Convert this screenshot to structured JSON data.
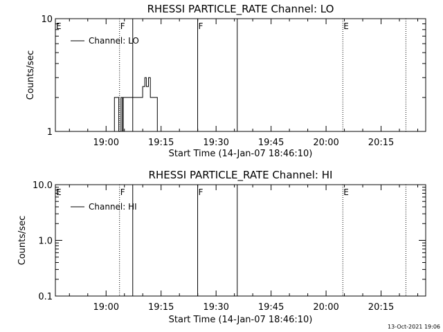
{
  "footer": {
    "timestamp": "13-Oct-2021 19:06"
  },
  "chart_data": [
    {
      "type": "line",
      "title": "RHESSI PARTICLE_RATE Channel: LO",
      "xlabel": "Start Time (14-Jan-07 18:46:10)",
      "ylabel": "Counts/sec",
      "x_unit": "minutes after 18:46:10",
      "xlim": [
        0,
        101
      ],
      "ylim": [
        1,
        10
      ],
      "yscale": "log",
      "x_ticks": [
        {
          "value": 13.83,
          "label": "19:00"
        },
        {
          "value": 28.83,
          "label": "19:15"
        },
        {
          "value": 43.83,
          "label": "19:30"
        },
        {
          "value": 58.83,
          "label": "19:45"
        },
        {
          "value": 73.83,
          "label": "20:00"
        },
        {
          "value": 88.83,
          "label": "20:15"
        }
      ],
      "y_ticks": [
        {
          "value": 10,
          "label": "10"
        },
        {
          "value": 1,
          "label": "1"
        }
      ],
      "legend": {
        "label": "Channel: LO",
        "position": "top-left"
      },
      "markers": [
        {
          "x": 0,
          "label": "E",
          "style": "none"
        },
        {
          "x": 17.5,
          "label": "F",
          "style": "dotted"
        },
        {
          "x": 21.1,
          "label": "",
          "style": "solid"
        },
        {
          "x": 38.8,
          "label": "F",
          "style": "solid"
        },
        {
          "x": 49.6,
          "label": "",
          "style": "solid"
        },
        {
          "x": 78.4,
          "label": "E",
          "style": "dotted"
        },
        {
          "x": 95.6,
          "label": "",
          "style": "dotted"
        }
      ],
      "series": [
        {
          "x": [
            16.1,
            16.1,
            17.3,
            17.3,
            17.9,
            17.9,
            18.3,
            18.3,
            18.5,
            18.5,
            18.9,
            18.9,
            23.8,
            23.8,
            24.4,
            24.4,
            24.8,
            24.8,
            25.4,
            25.4,
            25.9,
            25.9,
            27.8,
            27.8
          ],
          "y": [
            1,
            2,
            2,
            1,
            1,
            2,
            2,
            1,
            1,
            2,
            2,
            2,
            2,
            2.5,
            2.5,
            3,
            3,
            2.5,
            2.5,
            3,
            3,
            2,
            2,
            1
          ]
        }
      ]
    },
    {
      "type": "line",
      "title": "RHESSI PARTICLE_RATE Channel: HI",
      "xlabel": "Start Time (14-Jan-07 18:46:10)",
      "ylabel": "Counts/sec",
      "x_unit": "minutes after 18:46:10",
      "xlim": [
        0,
        101
      ],
      "ylim": [
        0.1,
        10
      ],
      "yscale": "log",
      "x_ticks": [
        {
          "value": 13.83,
          "label": "19:00"
        },
        {
          "value": 28.83,
          "label": "19:15"
        },
        {
          "value": 43.83,
          "label": "19:30"
        },
        {
          "value": 58.83,
          "label": "19:45"
        },
        {
          "value": 73.83,
          "label": "20:00"
        },
        {
          "value": 88.83,
          "label": "20:15"
        }
      ],
      "y_ticks": [
        {
          "value": 10,
          "label": "10.0"
        },
        {
          "value": 1,
          "label": "1.0"
        },
        {
          "value": 0.1,
          "label": "0.1"
        }
      ],
      "legend": {
        "label": "Channel: HI",
        "position": "top-left"
      },
      "markers": [
        {
          "x": 0,
          "label": "E",
          "style": "none"
        },
        {
          "x": 17.5,
          "label": "F",
          "style": "dotted"
        },
        {
          "x": 21.1,
          "label": "",
          "style": "solid"
        },
        {
          "x": 38.8,
          "label": "F",
          "style": "solid"
        },
        {
          "x": 49.6,
          "label": "",
          "style": "solid"
        },
        {
          "x": 78.4,
          "label": "E",
          "style": "dotted"
        },
        {
          "x": 95.6,
          "label": "",
          "style": "dotted"
        }
      ],
      "series": [
        {
          "x": [],
          "y": []
        }
      ]
    }
  ]
}
